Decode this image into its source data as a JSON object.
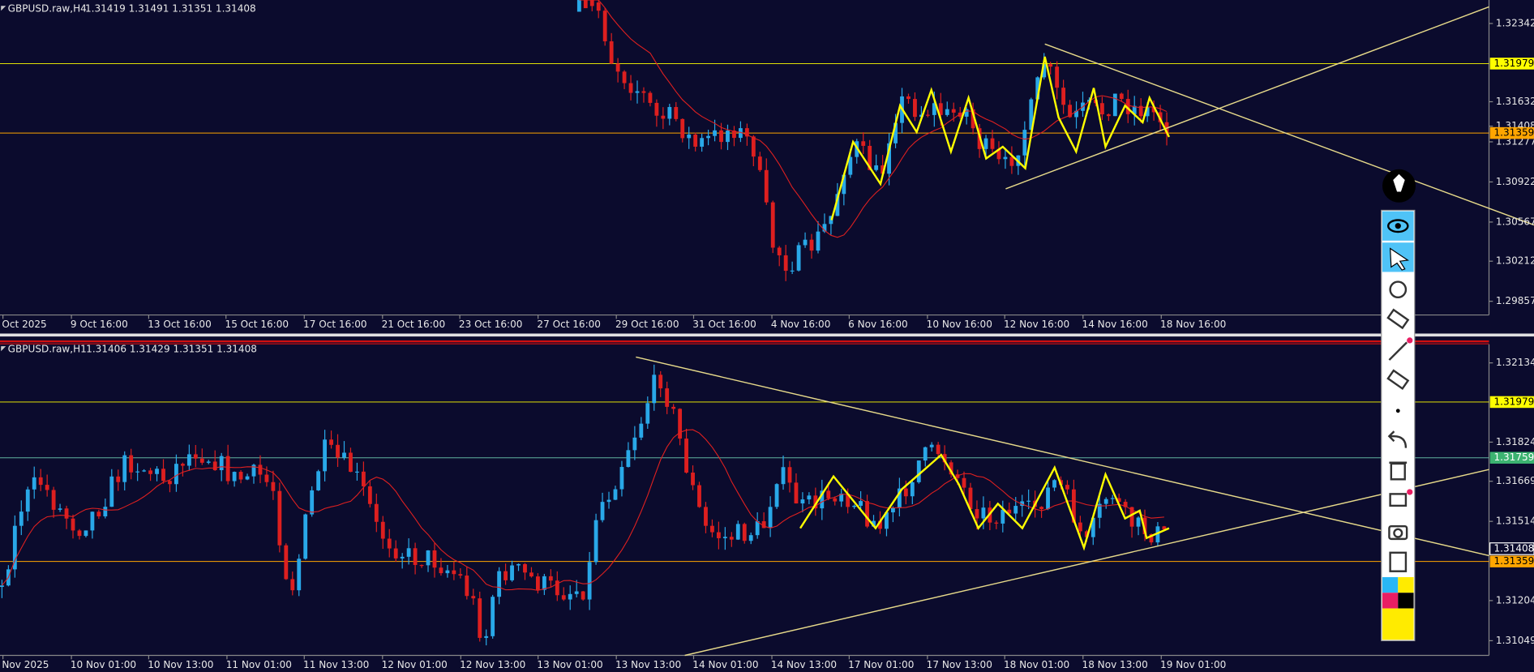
{
  "panels": [
    {
      "symbol": "GBPUSD.raw,H4",
      "quote": "1.31419 1.31491 1.31351 1.31408",
      "price_axis": [
        "1.32342",
        "1.31632",
        "1.31408",
        "1.31277",
        "1.30922",
        "1.30567",
        "1.30212",
        "1.29857"
      ],
      "markers": [
        {
          "label": "1.31979",
          "color": "#ffff00"
        },
        {
          "label": "1.31359",
          "color": "#ffa500"
        }
      ],
      "time_axis": [
        "Oct 2025",
        "9 Oct 16:00",
        "13 Oct 16:00",
        "15 Oct 16:00",
        "17 Oct 16:00",
        "21 Oct 16:00",
        "23 Oct 16:00",
        "27 Oct 16:00",
        "29 Oct 16:00",
        "31 Oct 16:00",
        "4 Nov 16:00",
        "6 Nov 16:00",
        "10 Nov 16:00",
        "12 Nov 16:00",
        "14 Nov 16:00",
        "18 Nov 16:00"
      ]
    },
    {
      "symbol": "GBPUSD.raw,H1",
      "quote": "1.31406 1.31429 1.31351 1.31408",
      "price_axis": [
        "1.32134",
        "1.31824",
        "1.31669",
        "1.31514",
        "1.31204",
        "1.31049"
      ],
      "markers": [
        {
          "label": "1.31979",
          "color": "#ffff00"
        },
        {
          "label": "1.31759",
          "color": "#3cb371"
        },
        {
          "label": "1.31408",
          "color": "#0b0b2d"
        },
        {
          "label": "1.31359",
          "color": "#ffa500"
        }
      ],
      "time_axis": [
        "Nov 2025",
        "10 Nov 01:00",
        "10 Nov 13:00",
        "11 Nov 01:00",
        "11 Nov 13:00",
        "12 Nov 01:00",
        "12 Nov 13:00",
        "13 Nov 01:00",
        "13 Nov 13:00",
        "14 Nov 01:00",
        "14 Nov 13:00",
        "17 Nov 01:00",
        "17 Nov 13:00",
        "18 Nov 01:00",
        "18 Nov 13:00",
        "19 Nov 01:00"
      ]
    }
  ]
}
